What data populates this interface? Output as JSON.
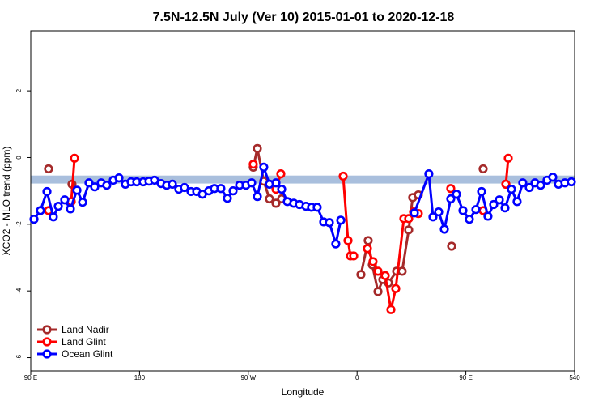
{
  "chart_data": {
    "type": "line",
    "title": "7.5N-12.5N July (Ver 10)   2015-01-01 to 2020-12-18",
    "x_label": "Longitude",
    "y_label": "XCO2 - MLO trend (ppm)",
    "xlim": [
      90,
      540
    ],
    "ylim": [
      -6.4,
      3.8
    ],
    "xticks": [
      {
        "value": 90,
        "label": "90 E"
      },
      180,
      {
        "value": 270,
        "label": "90 W"
      },
      {
        "value": 360,
        "label": "0"
      },
      {
        "value": 450,
        "label": "90 E"
      },
      540
    ],
    "yticks": [
      2,
      0,
      -2,
      -4,
      -6
    ],
    "band": [
      -0.78,
      -0.54
    ],
    "band_color": "#a9bfdd",
    "legend": "bottom-left",
    "series": [
      {
        "name": "Land Nadir",
        "color": "#a52a2a",
        "x": [
          104.7,
          null,
          124.1,
          null,
          274.1,
          277.5,
          282.8,
          287.5,
          292.9,
          297.6,
          null,
          363.2,
          369.2,
          372.6,
          377.3,
          381.3,
          386,
          392.7,
          397.3,
          402.7,
          406,
          410.7,
          null,
          438.2,
          null,
          464.3,
          null,
          483.1
        ],
        "values": [
          -0.34,
          null,
          -0.8,
          null,
          -0.29,
          0.27,
          -0.71,
          -1.24,
          -1.37,
          -1.24,
          null,
          -3.51,
          -2.49,
          -3.22,
          -4.02,
          -3.66,
          -3.76,
          -3.41,
          -3.41,
          -2.17,
          -1.2,
          -1.12,
          null,
          -2.66,
          null,
          -0.34,
          null,
          -0.8
        ]
      },
      {
        "name": "Land Glint",
        "color": "#ff0000",
        "x": [
          104.7,
          null,
          123.5,
          126.2,
          null,
          274.1,
          null,
          292.9,
          296.9,
          null,
          348.5,
          352.5,
          354.5,
          357.2,
          null,
          368.6,
          373.2,
          377.3,
          383.3,
          388,
          392,
          398.7,
          402.7,
          406.7,
          410.7,
          null,
          437.5,
          null,
          464.3,
          null,
          483.1,
          485.1
        ],
        "values": [
          -1.59,
          null,
          -1.32,
          -0.02,
          null,
          -0.2,
          null,
          -0.95,
          -0.49,
          null,
          -0.56,
          -2.49,
          -2.95,
          -2.95,
          null,
          -2.73,
          -3.12,
          -3.41,
          -3.54,
          -4.56,
          -3.93,
          -1.83,
          -1.83,
          -1.63,
          -1.68,
          null,
          -0.93,
          null,
          -1.59,
          null,
          -0.8,
          -0.02
        ]
      },
      {
        "name": "Ocean Glint",
        "color": "#0000ff",
        "x": [
          92.7,
          98,
          103.4,
          108.7,
          112.8,
          118.1,
          122.8,
          128.2,
          132.9,
          138.2,
          142.9,
          148.3,
          152.9,
          158.3,
          163,
          168.3,
          173,
          177.7,
          183,
          187.8,
          192.4,
          197.8,
          202.5,
          207.2,
          212.5,
          217.2,
          222.6,
          227.3,
          232,
          237.3,
          242,
          247.3,
          252.7,
          257.4,
          262.8,
          268.1,
          272.8,
          277.5,
          282.8,
          287.5,
          292.9,
          297.6,
          302.3,
          307.6,
          312.3,
          317.7,
          322.3,
          327,
          332.4,
          337.1,
          342.4,
          346.5,
          null,
          407.4,
          419.4,
          422.8,
          427.5,
          432.2,
          437.5,
          442.2,
          447.6,
          452.9,
          458.3,
          463,
          468.3,
          473,
          477.7,
          482.4,
          487.7,
          492.4,
          497.1,
          502.5,
          507.2,
          511.9,
          517.2,
          521.9,
          526.6,
          532,
          537.3
        ],
        "values": [
          -1.85,
          -1.59,
          -1.02,
          -1.78,
          -1.46,
          -1.27,
          -1.54,
          -0.98,
          -1.34,
          -0.76,
          -0.88,
          -0.76,
          -0.83,
          -0.68,
          -0.61,
          -0.8,
          -0.73,
          -0.73,
          -0.73,
          -0.71,
          -0.68,
          -0.78,
          -0.83,
          -0.8,
          -0.95,
          -0.9,
          -1.02,
          -1.02,
          -1.1,
          -1.0,
          -0.93,
          -0.93,
          -1.22,
          -1.0,
          -0.83,
          -0.83,
          -0.76,
          -1.17,
          -0.29,
          -0.8,
          -0.76,
          -0.95,
          -1.32,
          -1.37,
          -1.41,
          -1.46,
          -1.49,
          -1.49,
          -1.93,
          -1.95,
          -2.59,
          -1.88,
          null,
          -1.66,
          -0.49,
          -1.78,
          -1.63,
          -2.15,
          -1.24,
          -1.1,
          -1.59,
          -1.85,
          -1.56,
          -1.02,
          -1.76,
          -1.41,
          -1.27,
          -1.51,
          -0.95,
          -1.32,
          -0.76,
          -0.9,
          -0.76,
          -0.83,
          -0.68,
          -0.59,
          -0.8,
          -0.76,
          -0.73
        ]
      }
    ]
  }
}
